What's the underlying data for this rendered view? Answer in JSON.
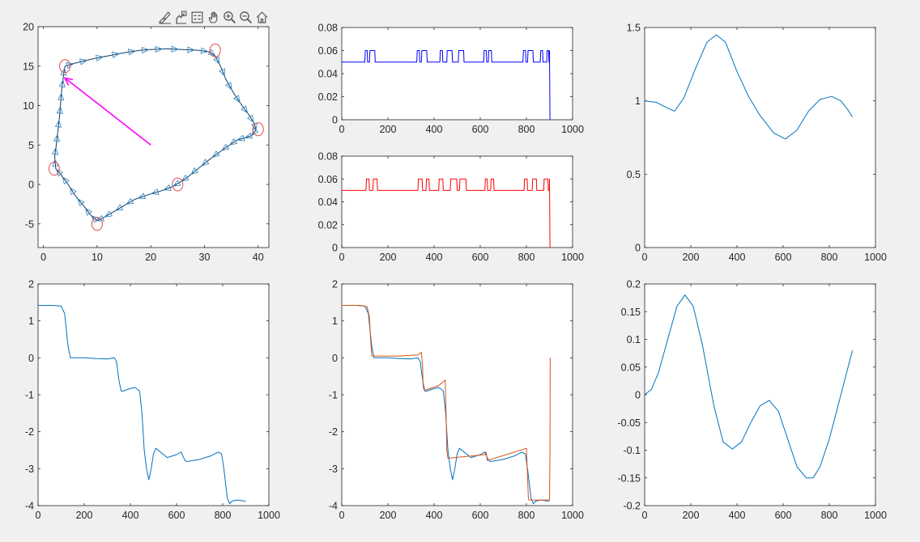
{
  "toolbar": {
    "tools": [
      {
        "name": "brush-icon"
      },
      {
        "name": "data-cursor-icon"
      },
      {
        "name": "legend-icon"
      },
      {
        "name": "pan-hand-icon"
      },
      {
        "name": "zoom-in-icon"
      },
      {
        "name": "zoom-out-icon"
      },
      {
        "name": "home-restore-icon"
      }
    ]
  },
  "colors": {
    "background": "#f0f0f0",
    "axes": "#262626",
    "matlab_blue": "#0072bd",
    "matlab_orange": "#d95319",
    "pure_blue": "#0000ff",
    "pure_red": "#ff0000",
    "magenta": "#ff00ff",
    "marker_circle": "#e34a4a"
  },
  "chart_data": [
    {
      "id": "trajectory",
      "type": "line",
      "xlim": [
        -1,
        42
      ],
      "ylim": [
        -8,
        20
      ],
      "xticks": [
        0,
        10,
        20,
        30,
        40
      ],
      "yticks": [
        -5,
        0,
        5,
        10,
        15,
        20
      ],
      "grid": false,
      "waypoints": [
        [
          4,
          15
        ],
        [
          32,
          17
        ],
        [
          40,
          7
        ],
        [
          25,
          0
        ],
        [
          10,
          -5
        ],
        [
          2,
          2
        ]
      ],
      "arrow": {
        "from": [
          20,
          5
        ],
        "to": [
          4,
          13.5
        ]
      },
      "path": [
        [
          4,
          15
        ],
        [
          6,
          15.4
        ],
        [
          9,
          15.9
        ],
        [
          12,
          16.3
        ],
        [
          15,
          16.7
        ],
        [
          18,
          17.0
        ],
        [
          20,
          17.1
        ],
        [
          23,
          17.2
        ],
        [
          26,
          17.1
        ],
        [
          29,
          17.0
        ],
        [
          31,
          16.8
        ],
        [
          32,
          16.3
        ],
        [
          33,
          15
        ],
        [
          34,
          13.3
        ],
        [
          35.5,
          11.5
        ],
        [
          37,
          10
        ],
        [
          38.3,
          8.8
        ],
        [
          39.3,
          7.7
        ],
        [
          39.6,
          6.9
        ],
        [
          38.8,
          6.2
        ],
        [
          37.5,
          5.9
        ],
        [
          36,
          5.6
        ],
        [
          34.5,
          4.9
        ],
        [
          33,
          4.2
        ],
        [
          31,
          3.2
        ],
        [
          29,
          2.1
        ],
        [
          27,
          1
        ],
        [
          25.5,
          0.3
        ],
        [
          24,
          -0.3
        ],
        [
          22,
          -0.8
        ],
        [
          19.5,
          -1.3
        ],
        [
          17,
          -1.9
        ],
        [
          15,
          -2.7
        ],
        [
          13,
          -3.5
        ],
        [
          11,
          -4.3
        ],
        [
          10,
          -4.6
        ],
        [
          8.8,
          -3.9
        ],
        [
          7.6,
          -2.8
        ],
        [
          6,
          -1.5
        ],
        [
          4.6,
          0
        ],
        [
          3.3,
          1.2
        ],
        [
          2.3,
          2
        ],
        [
          2.1,
          3.5
        ],
        [
          2.4,
          5
        ],
        [
          2.7,
          6.8
        ],
        [
          3.0,
          8.6
        ],
        [
          3.2,
          10.3
        ],
        [
          3.4,
          12
        ],
        [
          3.7,
          13.6
        ],
        [
          4,
          15
        ]
      ],
      "marker_step": 2
    },
    {
      "id": "speed-blue",
      "type": "line",
      "xlim": [
        0,
        1000
      ],
      "ylim": [
        0,
        0.08
      ],
      "xticks": [
        0,
        200,
        400,
        600,
        800,
        1000
      ],
      "yticks": [
        0,
        0.02,
        0.04,
        0.06,
        0.08
      ],
      "ytick_labels": [
        "0",
        "0.02",
        "0.04",
        "0.06",
        "0.08"
      ],
      "baseline": 0.05,
      "pulses": [
        [
          100,
          112
        ],
        [
          120,
          145
        ],
        [
          325,
          338
        ],
        [
          345,
          370
        ],
        [
          425,
          438
        ],
        [
          455,
          480
        ],
        [
          505,
          530
        ],
        [
          615,
          628
        ],
        [
          635,
          650
        ],
        [
          785,
          798
        ],
        [
          805,
          830
        ],
        [
          860,
          872
        ],
        [
          888,
          898
        ]
      ],
      "pulse_level": 0.06,
      "end_x": 902
    },
    {
      "id": "speed-red",
      "type": "line",
      "xlim": [
        0,
        1000
      ],
      "ylim": [
        0,
        0.08
      ],
      "xticks": [
        0,
        200,
        400,
        600,
        800,
        1000
      ],
      "yticks": [
        0,
        0.02,
        0.04,
        0.06,
        0.08
      ],
      "ytick_labels": [
        "0",
        "0.02",
        "0.04",
        "0.06",
        "0.08"
      ],
      "baseline": 0.05,
      "pulses": [
        [
          105,
          120
        ],
        [
          135,
          155
        ],
        [
          330,
          350
        ],
        [
          365,
          380
        ],
        [
          420,
          440
        ],
        [
          470,
          500
        ],
        [
          510,
          540
        ],
        [
          620,
          632
        ],
        [
          645,
          660
        ],
        [
          790,
          805
        ],
        [
          825,
          845
        ],
        [
          875,
          895
        ]
      ],
      "pulse_level": 0.06,
      "end_x": 902
    },
    {
      "id": "curve-top-right",
      "type": "line",
      "xlim": [
        0,
        1000
      ],
      "ylim": [
        0,
        1.5
      ],
      "xticks": [
        0,
        200,
        400,
        600,
        800,
        1000
      ],
      "yticks": [
        0,
        0.5,
        1,
        1.5
      ],
      "x": [
        0,
        50,
        100,
        130,
        170,
        220,
        270,
        310,
        350,
        400,
        450,
        500,
        560,
        610,
        660,
        710,
        760,
        810,
        850,
        880,
        900
      ],
      "y": [
        1.0,
        0.99,
        0.95,
        0.93,
        1.02,
        1.22,
        1.4,
        1.45,
        1.4,
        1.2,
        1.03,
        0.9,
        0.78,
        0.74,
        0.8,
        0.93,
        1.01,
        1.03,
        1.0,
        0.94,
        0.89
      ]
    },
    {
      "id": "heading-angle",
      "type": "line",
      "xlim": [
        0,
        1000
      ],
      "ylim": [
        -4,
        2
      ],
      "xticks": [
        0,
        200,
        400,
        600,
        800,
        1000
      ],
      "yticks": [
        -4,
        -3,
        -2,
        -1,
        0,
        1,
        2
      ],
      "x": [
        0,
        60,
        100,
        115,
        130,
        140,
        150,
        200,
        250,
        300,
        330,
        340,
        350,
        360,
        370,
        390,
        420,
        440,
        450,
        460,
        470,
        480,
        490,
        500,
        510,
        560,
        600,
        620,
        630,
        640,
        650,
        700,
        750,
        780,
        795,
        805,
        820,
        830,
        840,
        860,
        900
      ],
      "y": [
        1.42,
        1.42,
        1.4,
        1.2,
        0.3,
        0.0,
        0.0,
        0.0,
        -0.02,
        -0.03,
        0.0,
        -0.1,
        -0.6,
        -0.9,
        -0.9,
        -0.85,
        -0.8,
        -0.9,
        -1.5,
        -2.5,
        -3.0,
        -3.3,
        -3.0,
        -2.6,
        -2.45,
        -2.7,
        -2.62,
        -2.55,
        -2.7,
        -2.8,
        -2.8,
        -2.75,
        -2.65,
        -2.55,
        -2.6,
        -3.0,
        -3.8,
        -3.95,
        -3.88,
        -3.85,
        -3.88
      ]
    },
    {
      "id": "heading-compare",
      "type": "line",
      "xlim": [
        0,
        1000
      ],
      "ylim": [
        -4,
        2
      ],
      "xticks": [
        0,
        200,
        400,
        600,
        800,
        1000
      ],
      "yticks": [
        -4,
        -3,
        -2,
        -1,
        0,
        1,
        2
      ],
      "series": [
        {
          "color": "#0072bd",
          "x": [
            0,
            60,
            100,
            115,
            130,
            140,
            150,
            200,
            250,
            300,
            330,
            340,
            350,
            360,
            370,
            390,
            420,
            440,
            450,
            460,
            470,
            480,
            490,
            500,
            510,
            560,
            600,
            620,
            630,
            640,
            650,
            700,
            750,
            780,
            795,
            805,
            820,
            830,
            840,
            860,
            900
          ],
          "y": [
            1.42,
            1.42,
            1.4,
            1.2,
            0.3,
            0.0,
            0.0,
            0.0,
            -0.02,
            -0.03,
            0.0,
            -0.1,
            -0.6,
            -0.9,
            -0.9,
            -0.85,
            -0.8,
            -0.9,
            -1.5,
            -2.5,
            -3.0,
            -3.3,
            -3.0,
            -2.6,
            -2.45,
            -2.7,
            -2.62,
            -2.55,
            -2.7,
            -2.8,
            -2.8,
            -2.75,
            -2.65,
            -2.55,
            -2.6,
            -3.0,
            -3.8,
            -3.95,
            -3.88,
            -3.85,
            -3.88
          ]
        },
        {
          "color": "#d95319",
          "x": [
            0,
            80,
            110,
            120,
            125,
            130,
            250,
            330,
            345,
            350,
            352,
            355,
            360,
            420,
            448,
            452,
            455,
            460,
            620,
            625,
            628,
            630,
            800,
            805,
            808,
            810,
            900,
            902,
            903
          ],
          "y": [
            1.42,
            1.42,
            1.38,
            1.1,
            0.5,
            0.05,
            0.05,
            0.08,
            0.15,
            -0.2,
            -0.7,
            -0.85,
            -0.88,
            -0.75,
            -0.6,
            -1.5,
            -2.5,
            -2.72,
            -2.62,
            -2.55,
            -2.65,
            -2.78,
            -2.45,
            -3.2,
            -3.75,
            -3.85,
            -3.85,
            -2.5,
            0.0
          ]
        }
      ]
    },
    {
      "id": "curve-bottom-right",
      "type": "line",
      "xlim": [
        0,
        1000
      ],
      "ylim": [
        -0.2,
        0.2
      ],
      "xticks": [
        0,
        200,
        400,
        600,
        800,
        1000
      ],
      "yticks": [
        -0.2,
        -0.15,
        -0.1,
        -0.05,
        0,
        0.05,
        0.1,
        0.15,
        0.2
      ],
      "ytick_labels": [
        "-0.2",
        "-0.15",
        "-0.1",
        "-0.05",
        "0",
        "0.05",
        "0.1",
        "0.15",
        "0.2"
      ],
      "x": [
        0,
        30,
        60,
        100,
        140,
        175,
        210,
        250,
        300,
        340,
        380,
        420,
        460,
        500,
        540,
        580,
        620,
        660,
        700,
        730,
        760,
        800,
        850,
        900
      ],
      "y": [
        0.0,
        0.01,
        0.04,
        0.1,
        0.16,
        0.18,
        0.16,
        0.09,
        -0.02,
        -0.085,
        -0.098,
        -0.085,
        -0.05,
        -0.02,
        -0.01,
        -0.03,
        -0.08,
        -0.13,
        -0.15,
        -0.15,
        -0.13,
        -0.08,
        0.0,
        0.08
      ]
    }
  ]
}
